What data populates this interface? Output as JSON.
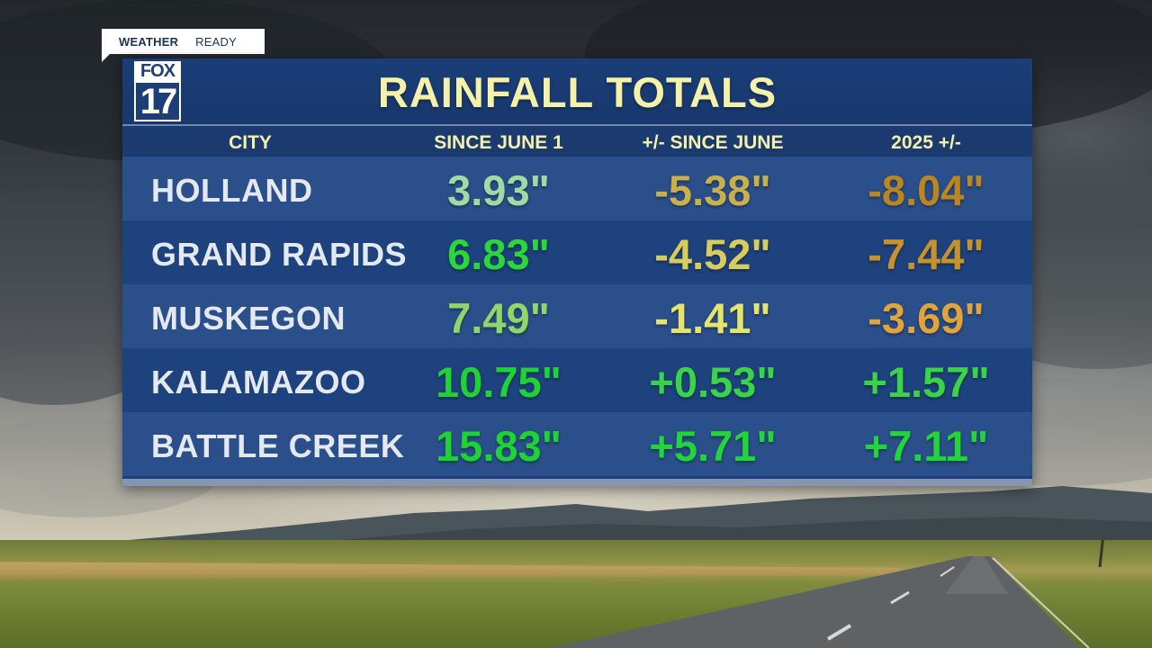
{
  "tag": {
    "weather": "WEATHER",
    "ready": "READY"
  },
  "logo": {
    "network": "FOX",
    "channel": "17"
  },
  "title": "RAINFALL TOTALS",
  "columns": [
    "CITY",
    "SINCE JUNE 1",
    "+/- SINCE JUNE",
    "2025 +/-"
  ],
  "rows": [
    {
      "city": "HOLLAND",
      "since_june_1": "3.93\"",
      "since_june_diff": "-5.38\"",
      "year_diff": "-8.04\""
    },
    {
      "city": "GRAND RAPIDS",
      "since_june_1": "6.83\"",
      "since_june_diff": "-4.52\"",
      "year_diff": "-7.44\""
    },
    {
      "city": "MUSKEGON",
      "since_june_1": "7.49\"",
      "since_june_diff": "-1.41\"",
      "year_diff": "-3.69\""
    },
    {
      "city": "KALAMAZOO",
      "since_june_1": "10.75\"",
      "since_june_diff": "+0.53\"",
      "year_diff": "+1.57\""
    },
    {
      "city": "BATTLE CREEK",
      "since_june_1": "15.83\"",
      "since_june_diff": "+5.71\"",
      "year_diff": "+7.11\""
    }
  ],
  "colors": {
    "board": "#1c3f78",
    "title": "#f6f1a9",
    "values": [
      [
        "#9fdca4",
        "#c9b04a",
        "#b9861f"
      ],
      [
        "#2bd73b",
        "#d8cc5c",
        "#c8922b"
      ],
      [
        "#8ed86a",
        "#e4e56a",
        "#e0a43a"
      ],
      [
        "#1fd335",
        "#39d546",
        "#39d546"
      ],
      [
        "#1fd335",
        "#23d43a",
        "#23d43a"
      ]
    ]
  }
}
